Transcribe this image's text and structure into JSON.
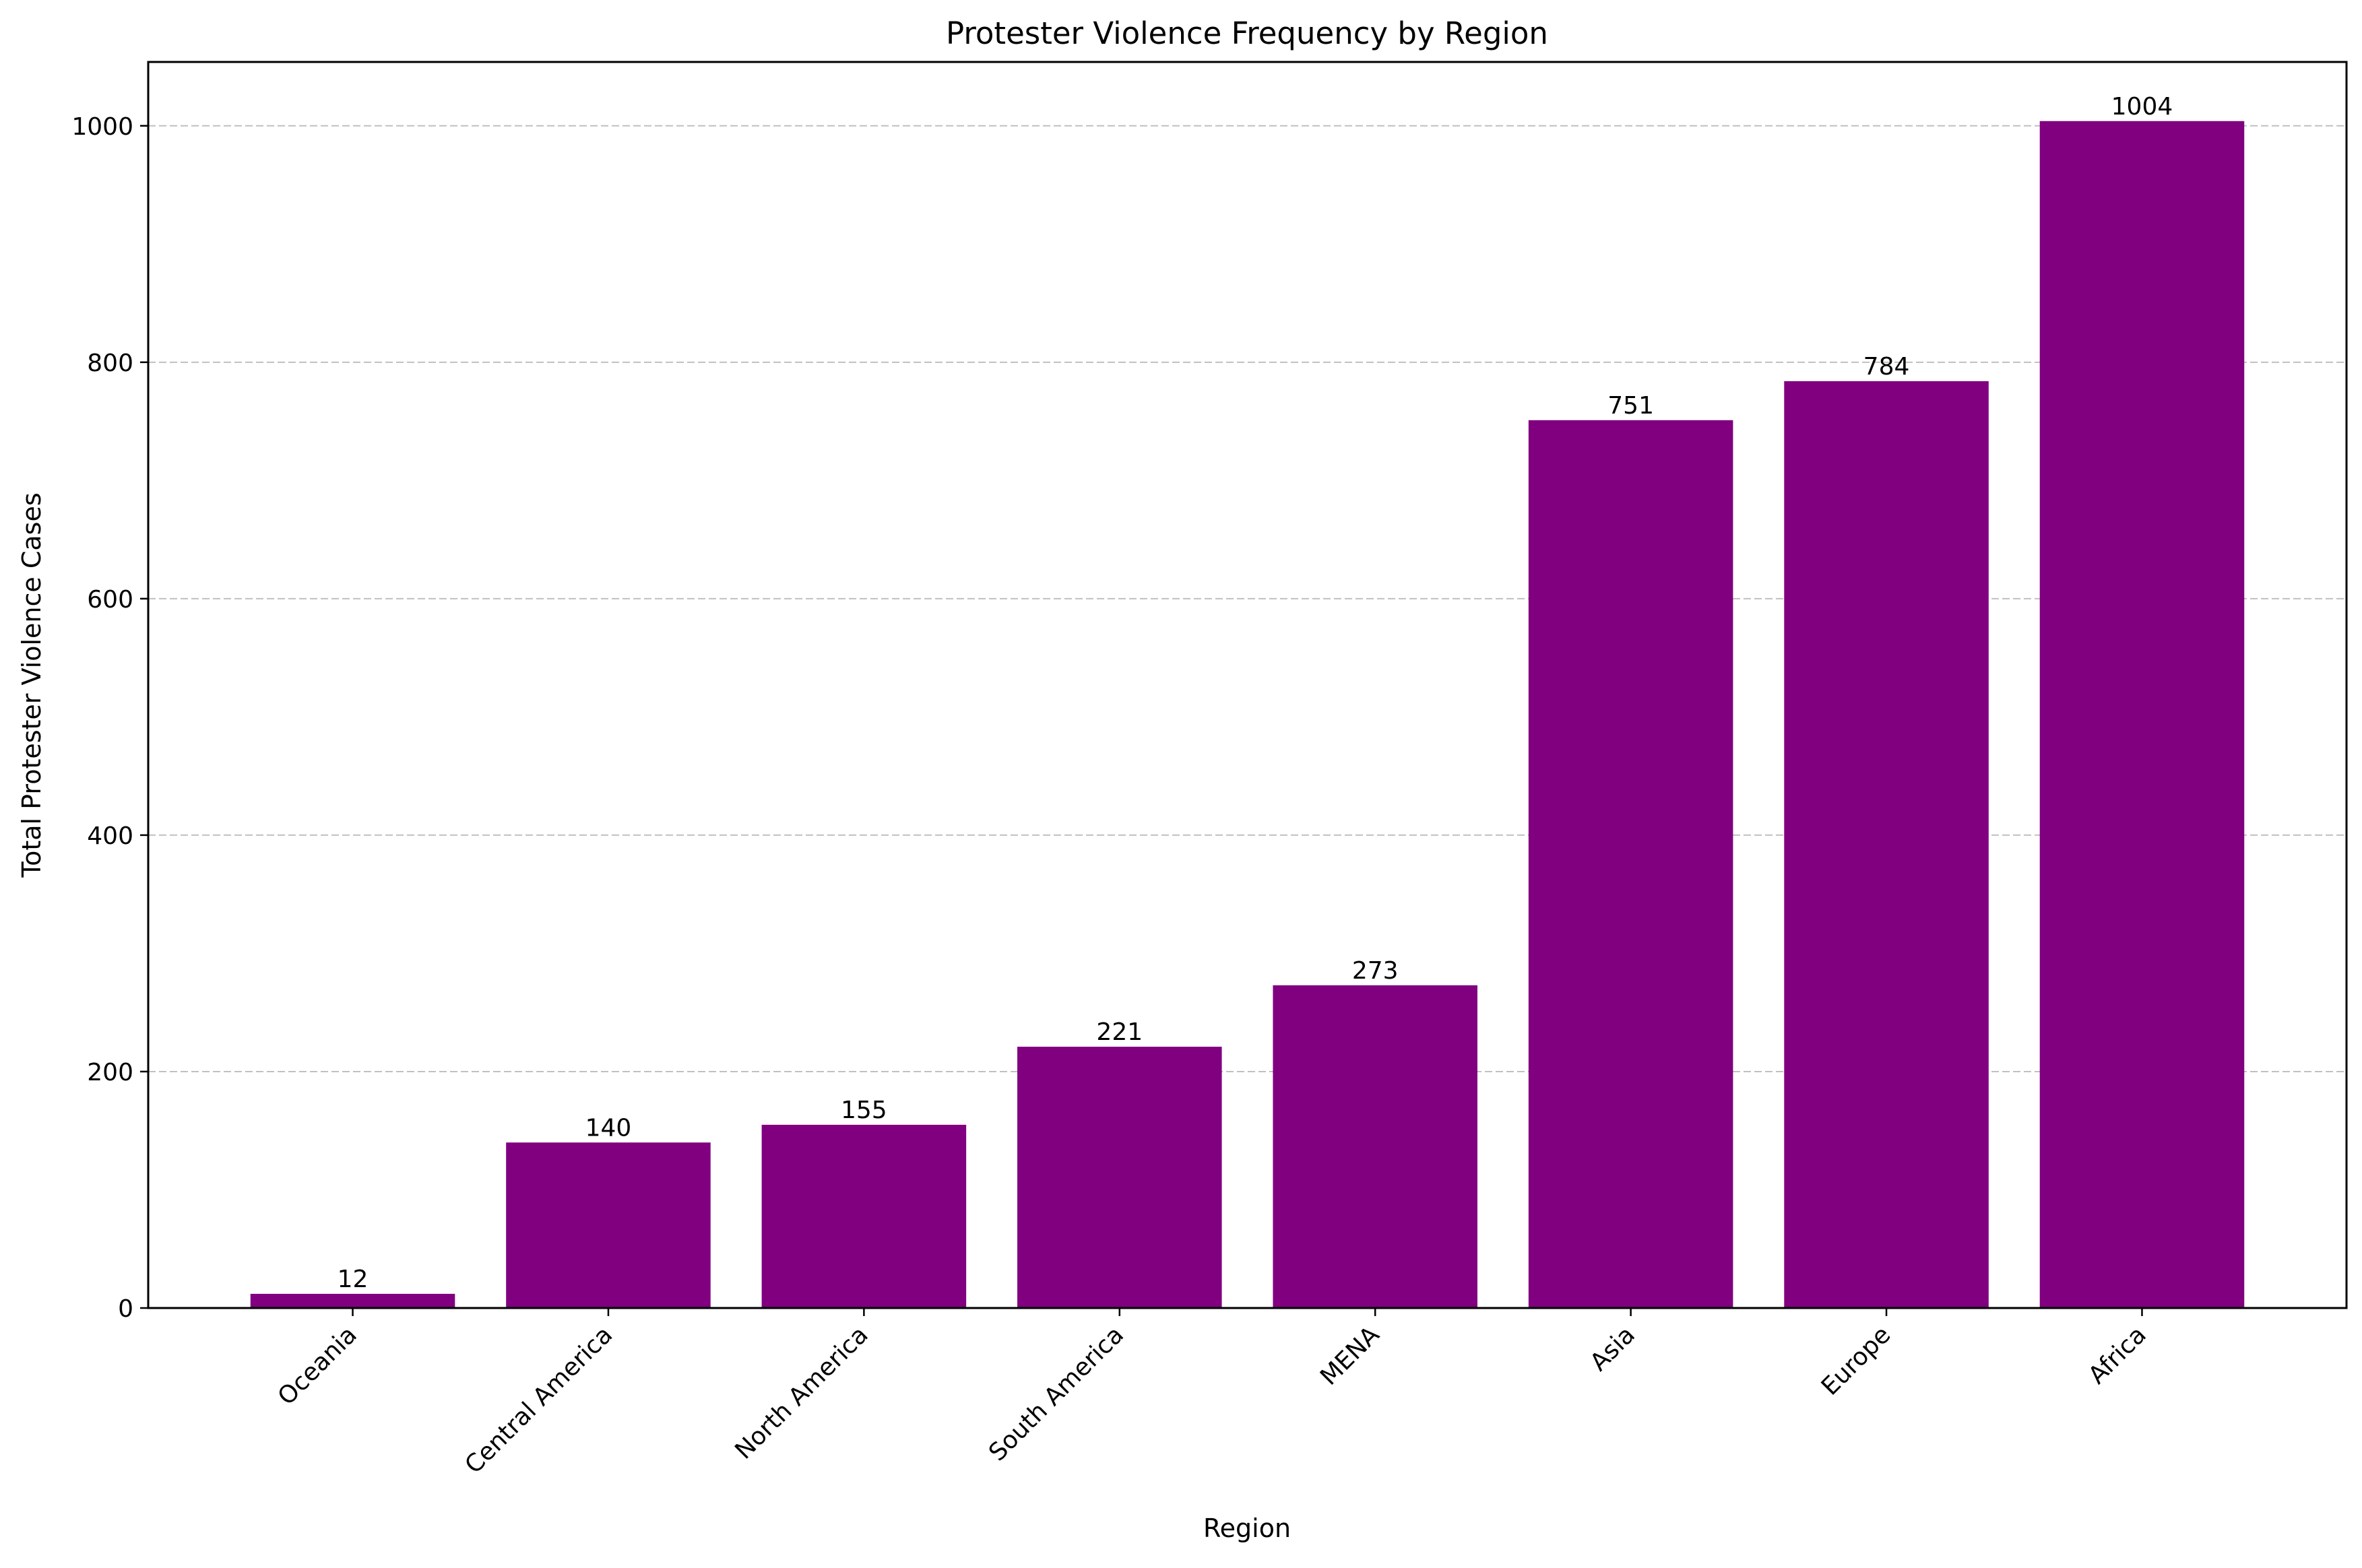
{
  "chart_data": {
    "type": "bar",
    "title": "Protester Violence Frequency by Region",
    "xlabel": "Region",
    "ylabel": "Total Protester Violence Cases",
    "categories": [
      "Oceania",
      "Central America",
      "North America",
      "South America",
      "MENA",
      "Asia",
      "Europe",
      "Africa"
    ],
    "values": [
      12,
      140,
      155,
      221,
      273,
      751,
      784,
      1004
    ],
    "data_labels": [
      "12",
      "140",
      "155",
      "221",
      "273",
      "751",
      "784",
      "1004"
    ],
    "ylim": [
      0,
      1054
    ],
    "yticks": [
      0,
      200,
      400,
      600,
      800,
      1000
    ],
    "ytick_labels": [
      "0",
      "200",
      "400",
      "600",
      "800",
      "1000"
    ],
    "grid": "y-axis, dashed",
    "legend": "none",
    "colors": {
      "bar": "#800080",
      "grid": "#c0c0c0",
      "axis": "#000000"
    }
  }
}
